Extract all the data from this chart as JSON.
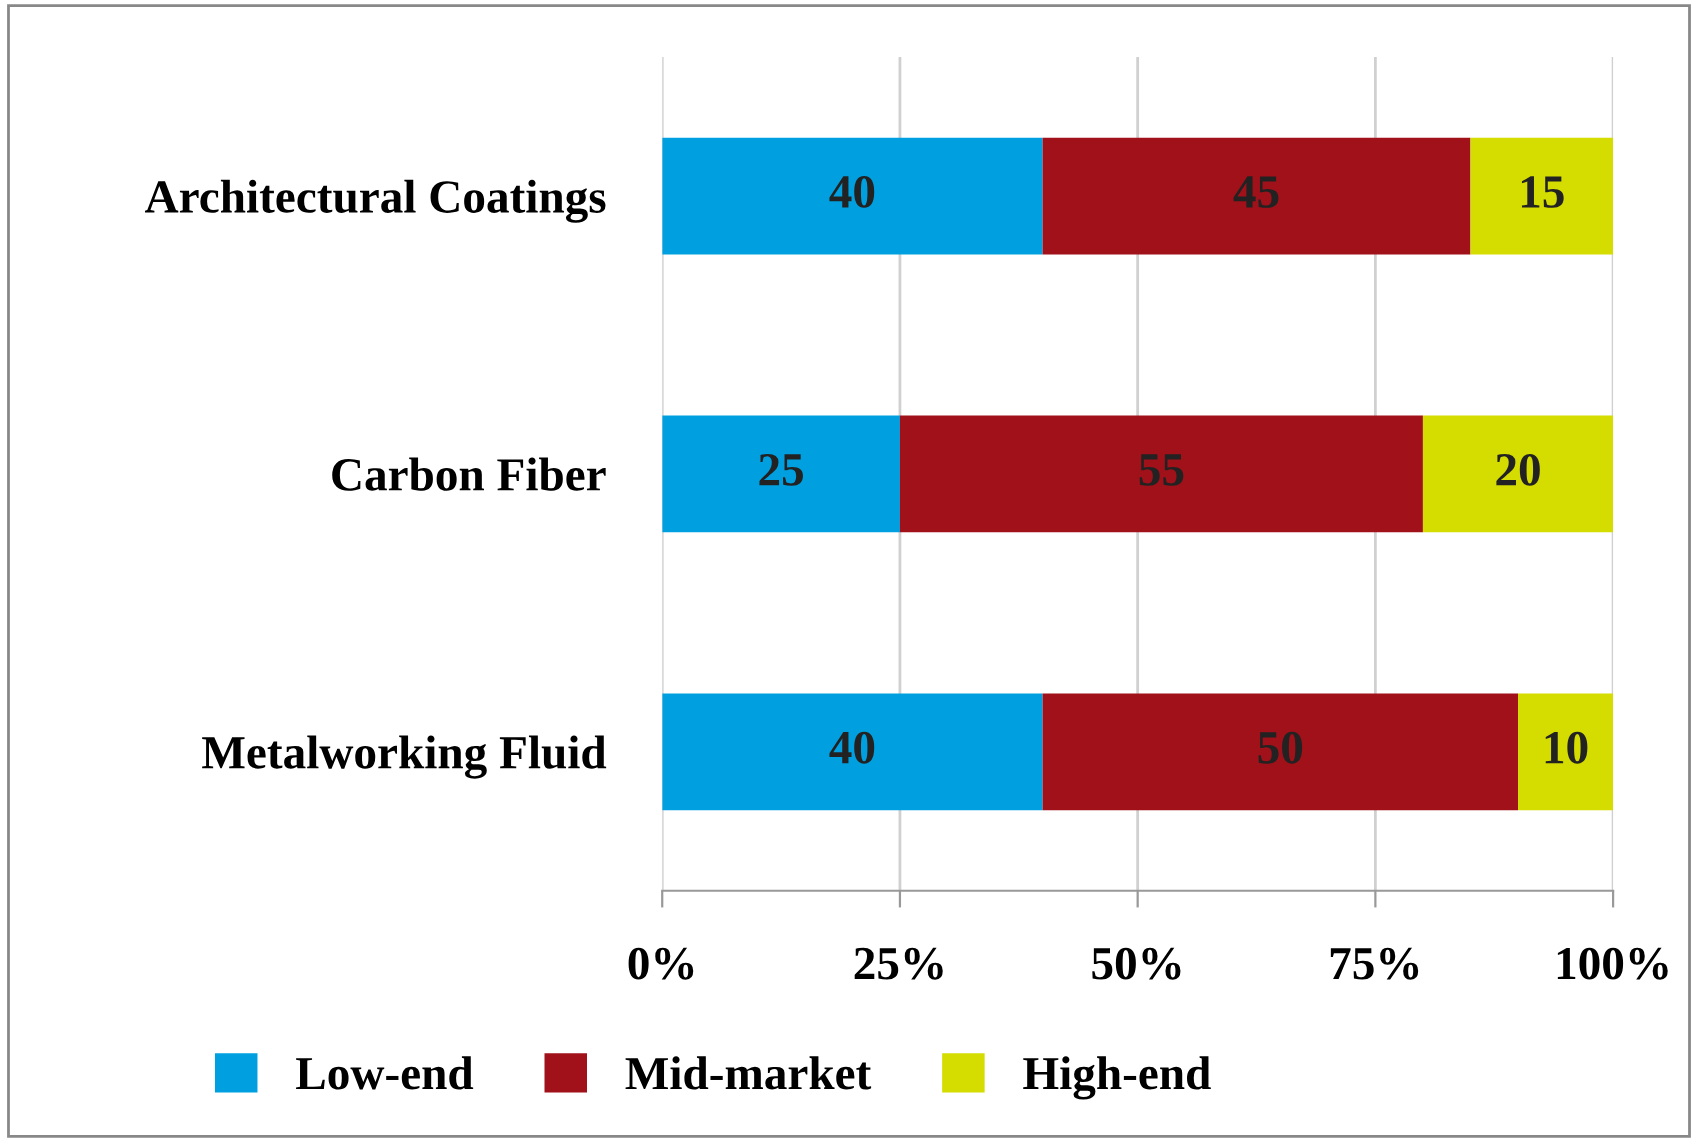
{
  "chart_data": {
    "type": "bar",
    "orientation": "horizontal",
    "stacked": true,
    "categories": [
      "Architectural Coatings",
      "Carbon Fiber",
      "Metalworking Fluid"
    ],
    "series": [
      {
        "name": "Low-end",
        "color": "#00a0e0",
        "values": [
          40,
          25,
          40
        ]
      },
      {
        "name": "Mid-market",
        "color": "#a0111a",
        "values": [
          45,
          55,
          50
        ]
      },
      {
        "name": "High-end",
        "color": "#d4dc00",
        "values": [
          15,
          20,
          10
        ]
      }
    ],
    "xlim": [
      0,
      100
    ],
    "xticks": [
      {
        "value": 0,
        "label": "0%"
      },
      {
        "value": 25,
        "label": "25%"
      },
      {
        "value": 50,
        "label": "50%"
      },
      {
        "value": 75,
        "label": "75%"
      },
      {
        "value": 100,
        "label": "100%"
      }
    ],
    "grid": "x",
    "data_labels": true,
    "legend": "bottom"
  }
}
